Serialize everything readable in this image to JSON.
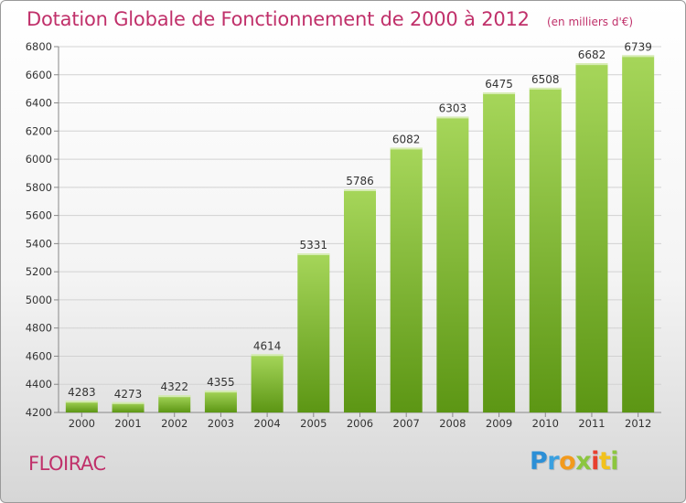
{
  "chart_data": {
    "type": "bar",
    "title": "Dotation Globale de Fonctionnement de 2000 à 2012",
    "unit": "(en milliers d'€)",
    "categories": [
      "2000",
      "2001",
      "2002",
      "2003",
      "2004",
      "2005",
      "2006",
      "2007",
      "2008",
      "2009",
      "2010",
      "2011",
      "2012"
    ],
    "values": [
      4283,
      4273,
      4322,
      4355,
      4614,
      5331,
      5786,
      6082,
      6303,
      6475,
      6508,
      6682,
      6739
    ],
    "ylim": [
      4200,
      6800
    ],
    "yticks": [
      4200,
      4400,
      4600,
      4800,
      5000,
      5200,
      5400,
      5600,
      5800,
      6000,
      6200,
      6400,
      6600,
      6800
    ],
    "grid": true,
    "colors": {
      "bar_top": "#a6d65a",
      "bar_bottom": "#5c9614",
      "title": "#c0306a"
    }
  },
  "commune": "FLOIRAC",
  "brand": {
    "letters": [
      "P",
      "r",
      "o",
      "x",
      "i",
      "t",
      "i"
    ],
    "colors": [
      "#2c8fd6",
      "#3aa0e0",
      "#f29a1d",
      "#8cc63f",
      "#e8402f",
      "#f2c21d",
      "#8cc63f"
    ]
  }
}
